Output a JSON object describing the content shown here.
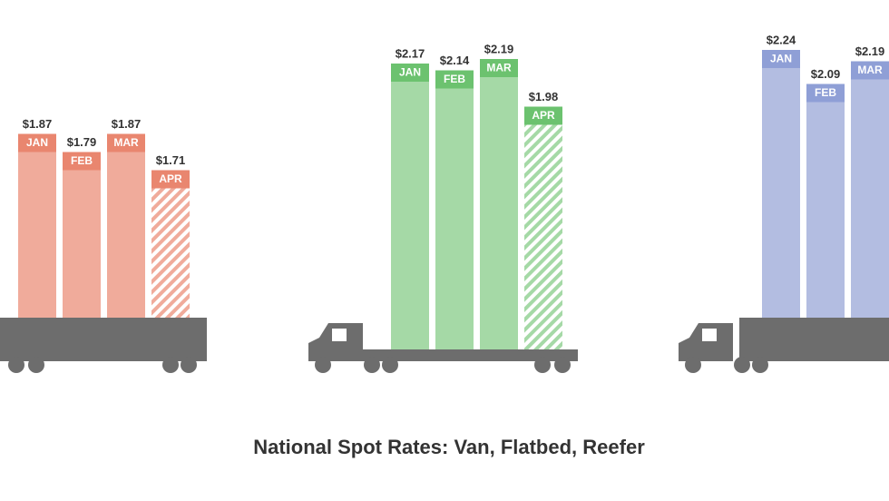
{
  "title": "National Spot Rates: Van, Flatbed, Reefer",
  "chart_data": [
    {
      "type": "bar",
      "categories": [
        "JAN",
        "FEB",
        "MAR",
        "APR"
      ],
      "values": [
        1.87,
        1.79,
        1.87,
        1.71
      ],
      "value_labels": [
        "$1.87",
        "$1.79",
        "$1.87",
        "$1.71"
      ],
      "color": "#f0ab9b",
      "label_color": "#e9866f",
      "hatched": [
        false,
        false,
        false,
        true
      ]
    },
    {
      "type": "bar",
      "categories": [
        "JAN",
        "FEB",
        "MAR",
        "APR"
      ],
      "values": [
        2.17,
        2.14,
        2.19,
        1.98
      ],
      "value_labels": [
        "$2.17",
        "$2.14",
        "$2.19",
        "$1.98"
      ],
      "color": "#a5d9a6",
      "label_color": "#6cc26f",
      "hatched": [
        false,
        false,
        false,
        true
      ]
    },
    {
      "type": "bar",
      "categories": [
        "JAN",
        "FEB",
        "MAR"
      ],
      "values": [
        2.24,
        2.09,
        2.19
      ],
      "value_labels": [
        "$2.24",
        "$2.09",
        "$2.19"
      ],
      "color": "#b3bde1",
      "label_color": "#8f9fd6",
      "hatched": [
        false,
        false,
        false
      ]
    }
  ]
}
